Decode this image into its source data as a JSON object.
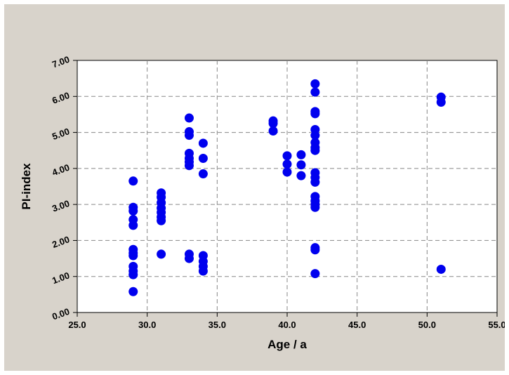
{
  "chart_data": {
    "type": "scatter",
    "title": "",
    "xlabel": "Age / a",
    "ylabel": "PI-index",
    "xlim": [
      25.0,
      55.0
    ],
    "ylim": [
      0.0,
      7.0
    ],
    "x_ticks": [
      "25.0",
      "30.0",
      "35.0",
      "40.0",
      "45.0",
      "50.0",
      "55.0"
    ],
    "y_ticks": [
      "0.00",
      "1.00",
      "2.00",
      "3.00",
      "4.00",
      "5.00",
      "6.00",
      "7.00"
    ],
    "grid": true,
    "marker_color": "#0000ee",
    "frame_color": "#d8d3cb",
    "points": [
      {
        "x": 29,
        "y": 3.65
      },
      {
        "x": 29,
        "y": 2.92
      },
      {
        "x": 29,
        "y": 2.82
      },
      {
        "x": 29,
        "y": 2.58
      },
      {
        "x": 29,
        "y": 2.42
      },
      {
        "x": 29,
        "y": 1.75
      },
      {
        "x": 29,
        "y": 1.65
      },
      {
        "x": 29,
        "y": 1.58
      },
      {
        "x": 29,
        "y": 1.28
      },
      {
        "x": 29,
        "y": 1.15
      },
      {
        "x": 29,
        "y": 1.05
      },
      {
        "x": 29,
        "y": 0.58
      },
      {
        "x": 31,
        "y": 3.32
      },
      {
        "x": 31,
        "y": 3.2
      },
      {
        "x": 31,
        "y": 3.05
      },
      {
        "x": 31,
        "y": 2.9
      },
      {
        "x": 31,
        "y": 2.78
      },
      {
        "x": 31,
        "y": 2.65
      },
      {
        "x": 31,
        "y": 2.55
      },
      {
        "x": 31,
        "y": 1.62
      },
      {
        "x": 33,
        "y": 5.4
      },
      {
        "x": 33,
        "y": 5.02
      },
      {
        "x": 33,
        "y": 4.92
      },
      {
        "x": 33,
        "y": 4.42
      },
      {
        "x": 33,
        "y": 4.28
      },
      {
        "x": 33,
        "y": 4.18
      },
      {
        "x": 33,
        "y": 4.08
      },
      {
        "x": 33,
        "y": 1.62
      },
      {
        "x": 33,
        "y": 1.5
      },
      {
        "x": 34,
        "y": 4.7
      },
      {
        "x": 34,
        "y": 4.28
      },
      {
        "x": 34,
        "y": 3.85
      },
      {
        "x": 34,
        "y": 1.58
      },
      {
        "x": 34,
        "y": 1.42
      },
      {
        "x": 34,
        "y": 1.28
      },
      {
        "x": 34,
        "y": 1.15
      },
      {
        "x": 39,
        "y": 5.32
      },
      {
        "x": 39,
        "y": 5.25
      },
      {
        "x": 39,
        "y": 5.04
      },
      {
        "x": 40,
        "y": 4.35
      },
      {
        "x": 40,
        "y": 4.12
      },
      {
        "x": 40,
        "y": 3.9
      },
      {
        "x": 41,
        "y": 4.38
      },
      {
        "x": 41,
        "y": 4.1
      },
      {
        "x": 41,
        "y": 3.8
      },
      {
        "x": 42,
        "y": 6.35
      },
      {
        "x": 42,
        "y": 6.12
      },
      {
        "x": 42,
        "y": 5.58
      },
      {
        "x": 42,
        "y": 5.52
      },
      {
        "x": 42,
        "y": 5.08
      },
      {
        "x": 42,
        "y": 4.92
      },
      {
        "x": 42,
        "y": 4.72
      },
      {
        "x": 42,
        "y": 4.58
      },
      {
        "x": 42,
        "y": 4.5
      },
      {
        "x": 42,
        "y": 3.88
      },
      {
        "x": 42,
        "y": 3.75
      },
      {
        "x": 42,
        "y": 3.62
      },
      {
        "x": 42,
        "y": 3.22
      },
      {
        "x": 42,
        "y": 3.1
      },
      {
        "x": 42,
        "y": 3.0
      },
      {
        "x": 42,
        "y": 2.92
      },
      {
        "x": 42,
        "y": 1.8
      },
      {
        "x": 42,
        "y": 1.74
      },
      {
        "x": 42,
        "y": 1.08
      },
      {
        "x": 51,
        "y": 5.98
      },
      {
        "x": 51,
        "y": 5.84
      },
      {
        "x": 51,
        "y": 1.2
      }
    ]
  }
}
